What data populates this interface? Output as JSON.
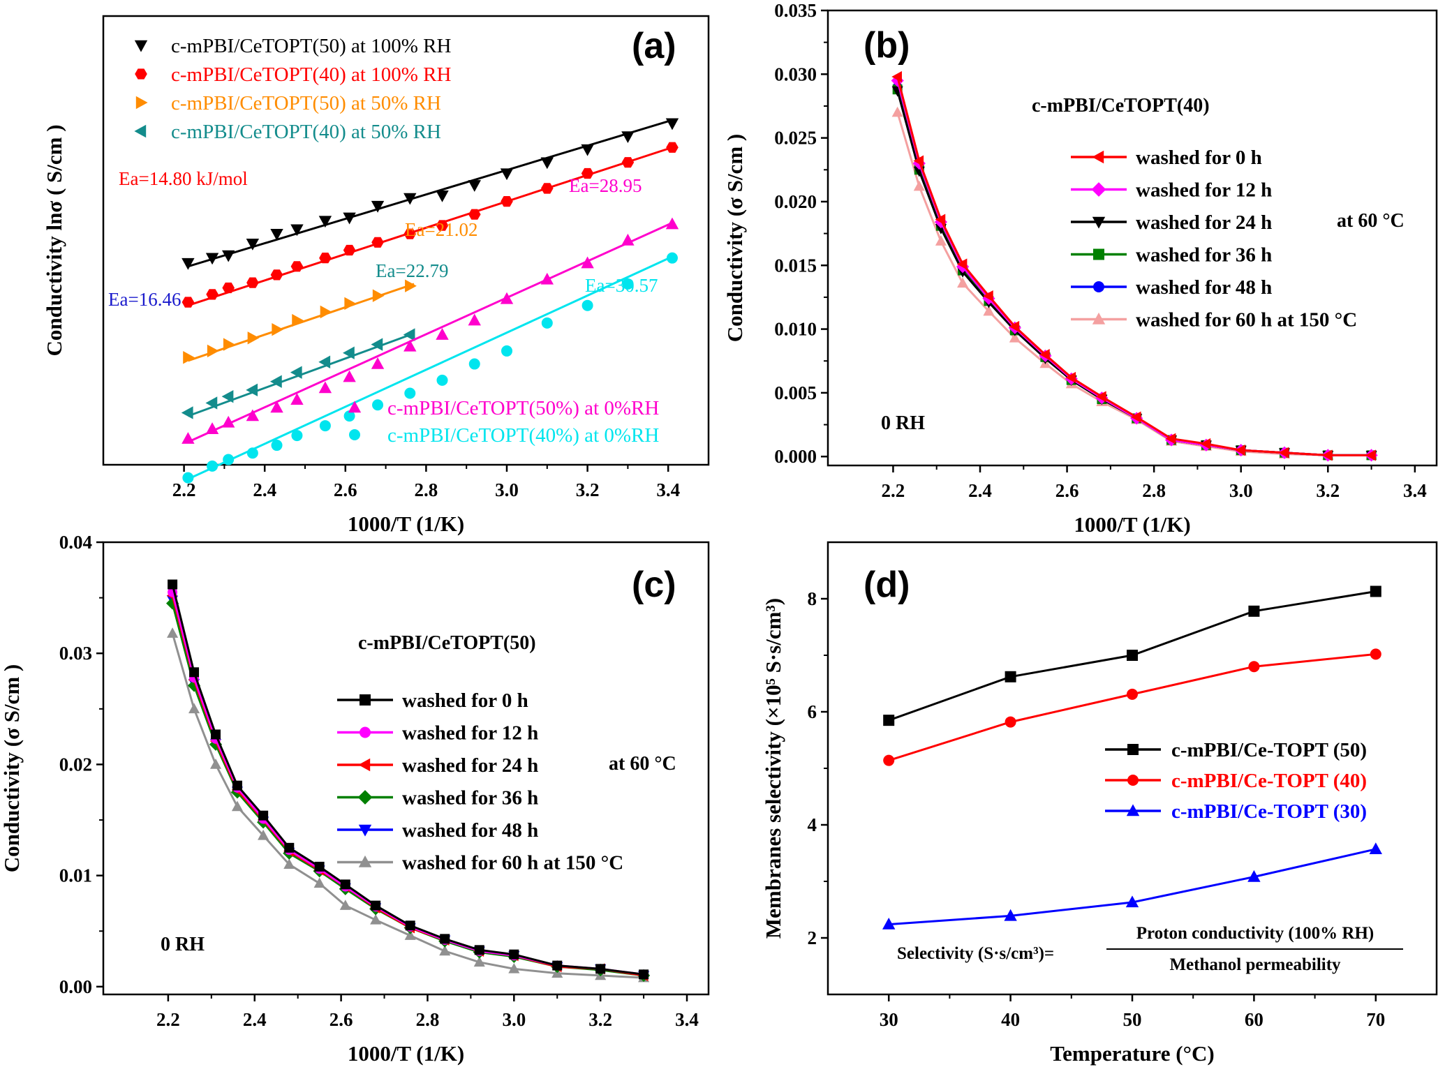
{
  "chart_data": [
    {
      "panel": "(a)",
      "type": "scatter",
      "xlabel": "1000/T (1/K)",
      "ylabel": "Conductivity  lnσ ( S/cm )",
      "xlim": [
        2.0,
        3.5
      ],
      "ylim": [
        -8.6,
        -1.7
      ],
      "xticks": [
        "2.2",
        "2.4",
        "2.6",
        "2.8",
        "3.0",
        "3.2",
        "3.4"
      ],
      "y_tick_labels_shown": false,
      "legend_top": "top-left",
      "legend_bottom": "bottom-right",
      "series": [
        {
          "name": "c-mPBI/CeTOPT(50) at 100% RH",
          "color": "#000000",
          "marker": "triangle-down",
          "x": [
            2.21,
            2.27,
            2.31,
            2.37,
            2.43,
            2.48,
            2.55,
            2.61,
            2.68,
            2.76,
            2.84,
            2.92,
            3.0,
            3.1,
            3.2,
            3.3,
            3.41
          ],
          "y": [
            -5.5,
            -5.42,
            -5.38,
            -5.2,
            -5.05,
            -4.98,
            -4.85,
            -4.8,
            -4.62,
            -4.5,
            -4.46,
            -4.3,
            -4.12,
            -3.95,
            -3.75,
            -3.55,
            -3.35
          ],
          "fit": [
            [
              2.21,
              -5.55
            ],
            [
              3.41,
              -3.3
            ]
          ]
        },
        {
          "name": "c-mPBI/CeTOPT(40) at 100% RH",
          "color": "#ff0000",
          "marker": "hexagon",
          "x": [
            2.21,
            2.27,
            2.31,
            2.37,
            2.43,
            2.48,
            2.55,
            2.61,
            2.68,
            2.76,
            2.84,
            2.92,
            3.0,
            3.1,
            3.2,
            3.3,
            3.41
          ],
          "y": [
            -6.1,
            -5.98,
            -5.88,
            -5.8,
            -5.68,
            -5.55,
            -5.42,
            -5.3,
            -5.18,
            -5.05,
            -4.92,
            -4.75,
            -4.55,
            -4.35,
            -4.12,
            -3.95,
            -3.72
          ],
          "fit": [
            [
              2.21,
              -6.15
            ],
            [
              3.41,
              -3.72
            ]
          ]
        },
        {
          "name": "c-mPBI/CeTOPT(50) at 50% RH",
          "color": "#ff8c00",
          "marker": "triangle-right",
          "x": [
            2.21,
            2.27,
            2.31,
            2.37,
            2.43,
            2.48,
            2.55,
            2.61,
            2.68,
            2.76
          ],
          "y": [
            -6.95,
            -6.85,
            -6.75,
            -6.65,
            -6.52,
            -6.38,
            -6.25,
            -6.12,
            -6.0,
            -5.85
          ],
          "fit": [
            [
              2.21,
              -7.0
            ],
            [
              2.77,
              -5.82
            ]
          ]
        },
        {
          "name": "c-mPBI/CeTOPT(40) at 50% RH",
          "color": "#138c8c",
          "marker": "triangle-left",
          "x": [
            2.21,
            2.27,
            2.31,
            2.37,
            2.43,
            2.48,
            2.55,
            2.61,
            2.68,
            2.76
          ],
          "y": [
            -7.8,
            -7.65,
            -7.55,
            -7.45,
            -7.32,
            -7.18,
            -7.02,
            -6.88,
            -6.75,
            -6.6
          ],
          "fit": [
            [
              2.21,
              -7.85
            ],
            [
              2.77,
              -6.58
            ]
          ]
        },
        {
          "name": "c-mPBI/CeTOPT(50%) at 0%RH",
          "color": "#ff00cc",
          "marker": "triangle-up",
          "x": [
            2.21,
            2.27,
            2.31,
            2.37,
            2.43,
            2.48,
            2.55,
            2.61,
            2.68,
            2.76,
            2.84,
            2.92,
            3.0,
            3.1,
            3.2,
            3.3,
            3.41
          ],
          "y": [
            -8.2,
            -8.05,
            -7.95,
            -7.85,
            -7.72,
            -7.6,
            -7.42,
            -7.25,
            -7.05,
            -6.78,
            -6.6,
            -6.38,
            -6.05,
            -5.75,
            -5.5,
            -5.15,
            -4.9
          ],
          "fit": [
            [
              2.21,
              -8.25
            ],
            [
              3.41,
              -4.88
            ]
          ]
        },
        {
          "name": "c-mPBI/CeTOPT(40%) at 0%RH",
          "color": "#00e5ee",
          "marker": "circle",
          "x": [
            2.21,
            2.27,
            2.31,
            2.37,
            2.43,
            2.48,
            2.55,
            2.61,
            2.68,
            2.76,
            2.84,
            2.92,
            3.0,
            3.1,
            3.2,
            3.3,
            3.41
          ],
          "y": [
            -8.8,
            -8.62,
            -8.52,
            -8.42,
            -8.3,
            -8.15,
            -8.0,
            -7.85,
            -7.68,
            -7.5,
            -7.3,
            -7.05,
            -6.85,
            -6.42,
            -6.15,
            -5.82,
            -5.42
          ],
          "fit": [
            [
              2.21,
              -8.82
            ],
            [
              3.41,
              -5.4
            ]
          ]
        }
      ],
      "annotations": [
        {
          "text": "Ea=14.80 kJ/mol",
          "color": "#ff0000"
        },
        {
          "text": "Ea=16.46",
          "color": "#1a1acc"
        },
        {
          "text": "Ea=21.02",
          "color": "#ff8c00"
        },
        {
          "text": "Ea=22.79",
          "color": "#138c8c"
        },
        {
          "text": "Ea=28.95",
          "color": "#ff00cc"
        },
        {
          "text": "Ea=30.57",
          "color": "#00e5ee"
        }
      ]
    },
    {
      "panel": "(b)",
      "type": "line",
      "xlabel": "1000/T (1/K)",
      "ylabel": "Conductivity (σ S/cm )",
      "xlim": [
        2.05,
        3.45
      ],
      "ylim": [
        -0.0007,
        0.035
      ],
      "xticks": [
        "2.2",
        "2.4",
        "2.6",
        "2.8",
        "3.0",
        "3.2",
        "3.4"
      ],
      "yticks": [
        "0.000",
        "0.005",
        "0.010",
        "0.015",
        "0.020",
        "0.025",
        "0.030",
        "0.035"
      ],
      "legend_title": "c-mPBI/CeTOPT(40)",
      "note_temp": "at 60 °C",
      "note_rh": "0 RH",
      "x": [
        2.21,
        2.26,
        2.31,
        2.36,
        2.42,
        2.48,
        2.55,
        2.61,
        2.68,
        2.76,
        2.84,
        2.92,
        3.0,
        3.1,
        3.2,
        3.3
      ],
      "series": [
        {
          "name": "washed for 0 h",
          "color": "#ff0000",
          "marker": "triangle-left",
          "values": [
            0.0298,
            0.0232,
            0.0186,
            0.0151,
            0.0126,
            0.0102,
            0.008,
            0.0062,
            0.0047,
            0.0031,
            0.0014,
            0.001,
            0.0005,
            0.0003,
            0.0001,
            0.0001
          ]
        },
        {
          "name": "washed for 12 h",
          "color": "#ff00ff",
          "marker": "diamond",
          "values": [
            0.0295,
            0.023,
            0.0184,
            0.0149,
            0.0124,
            0.0101,
            0.0079,
            0.0061,
            0.0046,
            0.003,
            0.0013,
            0.0009,
            0.0005,
            0.0003,
            0.0001,
            0.0001
          ]
        },
        {
          "name": "washed for 24 h",
          "color": "#000000",
          "marker": "triangle-down",
          "values": [
            0.0287,
            0.0224,
            0.0179,
            0.0145,
            0.0121,
            0.0099,
            0.0077,
            0.006,
            0.0045,
            0.003,
            0.0013,
            0.0009,
            0.0005,
            0.0003,
            0.0001,
            0.0001
          ]
        },
        {
          "name": "washed for 36 h",
          "color": "#008000",
          "marker": "square",
          "values": [
            0.0288,
            0.0225,
            0.0181,
            0.0146,
            0.0122,
            0.0099,
            0.0078,
            0.006,
            0.0045,
            0.003,
            0.0013,
            0.0009,
            0.0005,
            0.0003,
            0.0001,
            0.0001
          ]
        },
        {
          "name": "washed for 48 h",
          "color": "#0000ff",
          "marker": "circle",
          "values": [
            0.029,
            0.0227,
            0.0182,
            0.0147,
            0.0123,
            0.01,
            0.0078,
            0.006,
            0.0046,
            0.003,
            0.0013,
            0.0009,
            0.0005,
            0.0003,
            0.0001,
            0.0001
          ]
        },
        {
          "name": "washed for 60 h at 150 °C",
          "color": "#f4a0a0",
          "marker": "triangle-up",
          "values": [
            0.027,
            0.0212,
            0.0169,
            0.0136,
            0.0114,
            0.0093,
            0.0073,
            0.0057,
            0.0043,
            0.0029,
            0.0012,
            0.0008,
            0.0004,
            0.0002,
            0.0001,
            0.0001
          ]
        }
      ]
    },
    {
      "panel": "(c)",
      "type": "line",
      "xlabel": "1000/T (1/K)",
      "ylabel": "Conductivity (σ S/cm )",
      "xlim": [
        2.05,
        3.45
      ],
      "ylim": [
        -0.0007,
        0.04
      ],
      "xticks": [
        "2.2",
        "2.4",
        "2.6",
        "2.8",
        "3.0",
        "3.2",
        "3.4"
      ],
      "yticks": [
        "0.00",
        "0.01",
        "0.02",
        "0.03",
        "0.04"
      ],
      "legend_title": "c-mPBI/CeTOPT(50)",
      "note_temp": "at 60 °C",
      "note_rh": "0 RH",
      "x": [
        2.21,
        2.26,
        2.31,
        2.36,
        2.42,
        2.48,
        2.55,
        2.61,
        2.68,
        2.76,
        2.84,
        2.92,
        3.0,
        3.1,
        3.2,
        3.3
      ],
      "series": [
        {
          "name": "washed for 0 h",
          "color": "#000000",
          "marker": "square",
          "values": [
            0.0362,
            0.0283,
            0.0227,
            0.0181,
            0.0154,
            0.0125,
            0.0108,
            0.0092,
            0.0073,
            0.0055,
            0.0043,
            0.0033,
            0.0029,
            0.0019,
            0.0016,
            0.0011
          ]
        },
        {
          "name": "washed for 12 h",
          "color": "#ff00ff",
          "marker": "circle",
          "values": [
            0.0355,
            0.0278,
            0.0223,
            0.0179,
            0.0151,
            0.0123,
            0.0106,
            0.009,
            0.0072,
            0.0054,
            0.0042,
            0.0032,
            0.0028,
            0.0019,
            0.0016,
            0.0011
          ]
        },
        {
          "name": "washed for 24 h",
          "color": "#ff0000",
          "marker": "triangle-left",
          "values": [
            0.0352,
            0.0276,
            0.0221,
            0.0177,
            0.015,
            0.0122,
            0.0105,
            0.009,
            0.0071,
            0.0053,
            0.0042,
            0.0032,
            0.0028,
            0.0018,
            0.0016,
            0.001
          ]
        },
        {
          "name": "washed for 36 h",
          "color": "#008000",
          "marker": "diamond",
          "values": [
            0.0345,
            0.0271,
            0.0218,
            0.0175,
            0.0148,
            0.012,
            0.0104,
            0.0088,
            0.007,
            0.0053,
            0.0041,
            0.0031,
            0.0027,
            0.0018,
            0.0015,
            0.001
          ]
        },
        {
          "name": "washed for 48 h",
          "color": "#0000ff",
          "marker": "triangle-down",
          "values": [
            0.0348,
            0.0273,
            0.0219,
            0.0176,
            0.0149,
            0.0121,
            0.0105,
            0.0089,
            0.0071,
            0.0053,
            0.0042,
            0.0032,
            0.0028,
            0.0018,
            0.0016,
            0.001
          ]
        },
        {
          "name": "washed for 60 h at 150 °C",
          "color": "#909090",
          "marker": "triangle-up",
          "values": [
            0.0318,
            0.025,
            0.02,
            0.0162,
            0.0136,
            0.011,
            0.0093,
            0.0073,
            0.006,
            0.0046,
            0.0032,
            0.0022,
            0.0016,
            0.0012,
            0.001,
            0.0008
          ]
        }
      ]
    },
    {
      "panel": "(d)",
      "type": "line",
      "xlabel": "Temperature (°C)",
      "ylabel": "Membranes selectivity  (×10⁵ S·s/cm³)",
      "xlim": [
        25,
        75
      ],
      "ylim": [
        1.0,
        9.0
      ],
      "xticks": [
        "30",
        "40",
        "50",
        "60",
        "70"
      ],
      "yticks": [
        "2",
        "4",
        "6",
        "8"
      ],
      "x": [
        30,
        40,
        50,
        60,
        70
      ],
      "legend": "right-middle",
      "series": [
        {
          "name": "c-mPBI/Ce-TOPT (50)",
          "color": "#000000",
          "marker": "square",
          "values": [
            5.85,
            6.62,
            7.0,
            7.78,
            8.13
          ]
        },
        {
          "name": "c-mPBI/Ce-TOPT (40)",
          "color": "#ff0000",
          "marker": "circle",
          "values": [
            5.14,
            5.82,
            6.31,
            6.8,
            7.02
          ]
        },
        {
          "name": "c-mPBI/Ce-TOPT (30)",
          "color": "#0000ff",
          "marker": "triangle-up",
          "values": [
            2.24,
            2.39,
            2.63,
            3.08,
            3.57
          ]
        }
      ],
      "formula": {
        "lhs": "Selectivity (S·s/cm³)=",
        "numerator": "Proton conductivity (100% RH)",
        "denominator": "Methanol permeability"
      }
    }
  ]
}
